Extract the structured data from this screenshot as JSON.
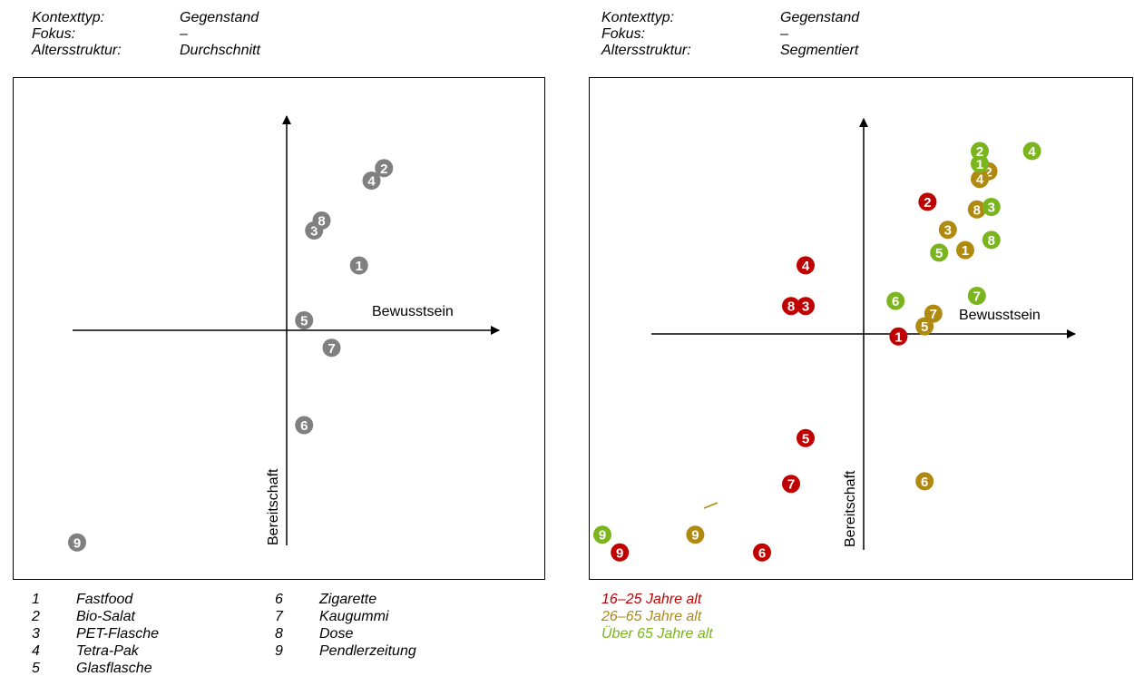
{
  "left_panel": {
    "meta": [
      {
        "key": "Kontexttyp:",
        "value": "Gegenstand"
      },
      {
        "key": "Fokus:",
        "value": "–"
      },
      {
        "key": "Altersstruktur:",
        "value": "Durchschnitt"
      }
    ]
  },
  "right_panel": {
    "meta": [
      {
        "key": "Kontexttyp:",
        "value": "Gegenstand"
      },
      {
        "key": "Fokus:",
        "value": "–"
      },
      {
        "key": "Altersstruktur:",
        "value": "Segmentiert"
      }
    ]
  },
  "legend": [
    {
      "num": "1",
      "label": "Fastfood"
    },
    {
      "num": "2",
      "label": "Bio-Salat"
    },
    {
      "num": "3",
      "label": "PET-Flasche"
    },
    {
      "num": "4",
      "label": "Tetra-Pak"
    },
    {
      "num": "5",
      "label": "Glasflasche"
    },
    {
      "num": "6",
      "label": "Zigarette"
    },
    {
      "num": "7",
      "label": "Kaugummi"
    },
    {
      "num": "8",
      "label": "Dose"
    },
    {
      "num": "9",
      "label": "Pendlerzeitung"
    }
  ],
  "age_groups": [
    {
      "label": "16–25 Jahre alt",
      "color": "#c00000"
    },
    {
      "label": "26–65 Jahre alt",
      "color": "#b08a10"
    },
    {
      "label": "Über 65 Jahre alt",
      "color": "#7ab51d"
    }
  ],
  "chart_data": [
    {
      "type": "scatter",
      "title": "",
      "xlabel": "Bewusstsein",
      "ylabel": "Bereitschaft",
      "xlim": [
        -10,
        10
      ],
      "ylim": [
        -10,
        10
      ],
      "grid": false,
      "series": [
        {
          "color": "#808080",
          "points": [
            {
              "x": 2.9,
              "y": 2.6,
              "label": "1"
            },
            {
              "x": 3.9,
              "y": 6.5,
              "label": "2"
            },
            {
              "x": 1.1,
              "y": 4.0,
              "label": "3"
            },
            {
              "x": 3.4,
              "y": 6.0,
              "label": "4"
            },
            {
              "x": 0.7,
              "y": 0.4,
              "label": "5"
            },
            {
              "x": 0.7,
              "y": -3.8,
              "label": "6"
            },
            {
              "x": 1.8,
              "y": -0.7,
              "label": "7"
            },
            {
              "x": 1.4,
              "y": 4.4,
              "label": "8"
            },
            {
              "x": -8.4,
              "y": -8.5,
              "label": "9"
            }
          ]
        }
      ]
    },
    {
      "type": "scatter",
      "title": "",
      "xlabel": "Bewusstsein",
      "ylabel": "Bereitschaft",
      "xlim": [
        -10,
        10
      ],
      "ylim": [
        -10,
        10
      ],
      "grid": false,
      "series": [
        {
          "color": "#c00000",
          "points": [
            {
              "x": 1.2,
              "y": -0.1,
              "label": "1"
            },
            {
              "x": 2.2,
              "y": 5.2,
              "label": "2"
            },
            {
              "x": -2.0,
              "y": 1.1,
              "label": "3"
            },
            {
              "x": -2.0,
              "y": 2.7,
              "label": "4"
            },
            {
              "x": -2.0,
              "y": -4.1,
              "label": "5"
            },
            {
              "x": -3.5,
              "y": -8.6,
              "label": "6"
            },
            {
              "x": -2.5,
              "y": -5.9,
              "label": "7"
            },
            {
              "x": -2.5,
              "y": 1.1,
              "label": "8"
            },
            {
              "x": -8.4,
              "y": -8.6,
              "label": "9"
            }
          ]
        },
        {
          "color": "#b08a10",
          "points": [
            {
              "x": 3.5,
              "y": 3.3,
              "label": "1"
            },
            {
              "x": 4.3,
              "y": 6.4,
              "label": "2"
            },
            {
              "x": 2.9,
              "y": 4.1,
              "label": "3"
            },
            {
              "x": 4.0,
              "y": 6.1,
              "label": "4"
            },
            {
              "x": 2.1,
              "y": 0.3,
              "label": "5"
            },
            {
              "x": 2.1,
              "y": -5.8,
              "label": "6"
            },
            {
              "x": 2.4,
              "y": 0.8,
              "label": "7"
            },
            {
              "x": 3.9,
              "y": 4.9,
              "label": "8"
            },
            {
              "x": -5.8,
              "y": -7.9,
              "label": "9"
            }
          ]
        },
        {
          "color": "#7ab51d",
          "points": [
            {
              "x": 4.0,
              "y": 6.7,
              "label": "1"
            },
            {
              "x": 4.0,
              "y": 7.2,
              "label": "2"
            },
            {
              "x": 4.4,
              "y": 5.0,
              "label": "3"
            },
            {
              "x": 5.8,
              "y": 7.2,
              "label": "4"
            },
            {
              "x": 2.6,
              "y": 3.2,
              "label": "5"
            },
            {
              "x": 1.1,
              "y": 1.3,
              "label": "6"
            },
            {
              "x": 3.9,
              "y": 1.5,
              "label": "7"
            },
            {
              "x": 4.4,
              "y": 3.7,
              "label": "8"
            },
            {
              "x": -9.0,
              "y": -7.9,
              "label": "9"
            }
          ]
        }
      ]
    }
  ]
}
